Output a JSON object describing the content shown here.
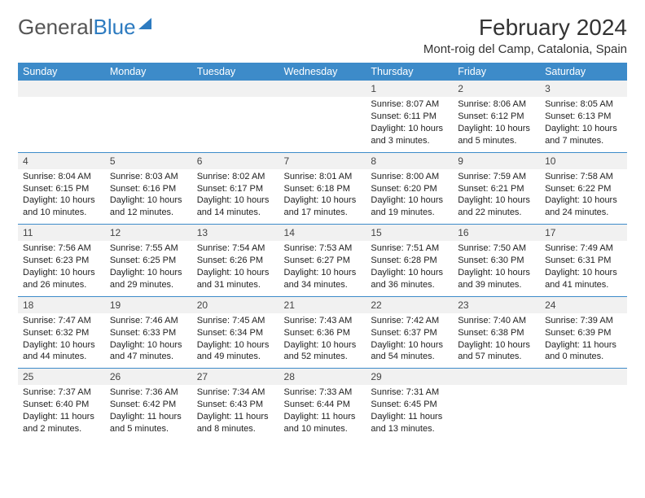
{
  "brand": {
    "part1": "General",
    "part2": "Blue"
  },
  "title": "February 2024",
  "location": "Mont-roig del Camp, Catalonia, Spain",
  "colors": {
    "header_bg": "#3d8bc9",
    "header_text": "#ffffff",
    "row_divider": "#3d8bc9",
    "daynum_bg": "#f1f1f1",
    "text": "#222222",
    "logo_blue": "#2d7bc0",
    "logo_gray": "#555555"
  },
  "day_headers": [
    "Sunday",
    "Monday",
    "Tuesday",
    "Wednesday",
    "Thursday",
    "Friday",
    "Saturday"
  ],
  "weeks": [
    [
      null,
      null,
      null,
      null,
      {
        "n": "1",
        "sr": "8:07 AM",
        "ss": "6:11 PM",
        "dl": "10 hours and 3 minutes."
      },
      {
        "n": "2",
        "sr": "8:06 AM",
        "ss": "6:12 PM",
        "dl": "10 hours and 5 minutes."
      },
      {
        "n": "3",
        "sr": "8:05 AM",
        "ss": "6:13 PM",
        "dl": "10 hours and 7 minutes."
      }
    ],
    [
      {
        "n": "4",
        "sr": "8:04 AM",
        "ss": "6:15 PM",
        "dl": "10 hours and 10 minutes."
      },
      {
        "n": "5",
        "sr": "8:03 AM",
        "ss": "6:16 PM",
        "dl": "10 hours and 12 minutes."
      },
      {
        "n": "6",
        "sr": "8:02 AM",
        "ss": "6:17 PM",
        "dl": "10 hours and 14 minutes."
      },
      {
        "n": "7",
        "sr": "8:01 AM",
        "ss": "6:18 PM",
        "dl": "10 hours and 17 minutes."
      },
      {
        "n": "8",
        "sr": "8:00 AM",
        "ss": "6:20 PM",
        "dl": "10 hours and 19 minutes."
      },
      {
        "n": "9",
        "sr": "7:59 AM",
        "ss": "6:21 PM",
        "dl": "10 hours and 22 minutes."
      },
      {
        "n": "10",
        "sr": "7:58 AM",
        "ss": "6:22 PM",
        "dl": "10 hours and 24 minutes."
      }
    ],
    [
      {
        "n": "11",
        "sr": "7:56 AM",
        "ss": "6:23 PM",
        "dl": "10 hours and 26 minutes."
      },
      {
        "n": "12",
        "sr": "7:55 AM",
        "ss": "6:25 PM",
        "dl": "10 hours and 29 minutes."
      },
      {
        "n": "13",
        "sr": "7:54 AM",
        "ss": "6:26 PM",
        "dl": "10 hours and 31 minutes."
      },
      {
        "n": "14",
        "sr": "7:53 AM",
        "ss": "6:27 PM",
        "dl": "10 hours and 34 minutes."
      },
      {
        "n": "15",
        "sr": "7:51 AM",
        "ss": "6:28 PM",
        "dl": "10 hours and 36 minutes."
      },
      {
        "n": "16",
        "sr": "7:50 AM",
        "ss": "6:30 PM",
        "dl": "10 hours and 39 minutes."
      },
      {
        "n": "17",
        "sr": "7:49 AM",
        "ss": "6:31 PM",
        "dl": "10 hours and 41 minutes."
      }
    ],
    [
      {
        "n": "18",
        "sr": "7:47 AM",
        "ss": "6:32 PM",
        "dl": "10 hours and 44 minutes."
      },
      {
        "n": "19",
        "sr": "7:46 AM",
        "ss": "6:33 PM",
        "dl": "10 hours and 47 minutes."
      },
      {
        "n": "20",
        "sr": "7:45 AM",
        "ss": "6:34 PM",
        "dl": "10 hours and 49 minutes."
      },
      {
        "n": "21",
        "sr": "7:43 AM",
        "ss": "6:36 PM",
        "dl": "10 hours and 52 minutes."
      },
      {
        "n": "22",
        "sr": "7:42 AM",
        "ss": "6:37 PM",
        "dl": "10 hours and 54 minutes."
      },
      {
        "n": "23",
        "sr": "7:40 AM",
        "ss": "6:38 PM",
        "dl": "10 hours and 57 minutes."
      },
      {
        "n": "24",
        "sr": "7:39 AM",
        "ss": "6:39 PM",
        "dl": "11 hours and 0 minutes."
      }
    ],
    [
      {
        "n": "25",
        "sr": "7:37 AM",
        "ss": "6:40 PM",
        "dl": "11 hours and 2 minutes."
      },
      {
        "n": "26",
        "sr": "7:36 AM",
        "ss": "6:42 PM",
        "dl": "11 hours and 5 minutes."
      },
      {
        "n": "27",
        "sr": "7:34 AM",
        "ss": "6:43 PM",
        "dl": "11 hours and 8 minutes."
      },
      {
        "n": "28",
        "sr": "7:33 AM",
        "ss": "6:44 PM",
        "dl": "11 hours and 10 minutes."
      },
      {
        "n": "29",
        "sr": "7:31 AM",
        "ss": "6:45 PM",
        "dl": "11 hours and 13 minutes."
      },
      null,
      null
    ]
  ],
  "labels": {
    "sunrise": "Sunrise:",
    "sunset": "Sunset:",
    "daylight": "Daylight:"
  }
}
